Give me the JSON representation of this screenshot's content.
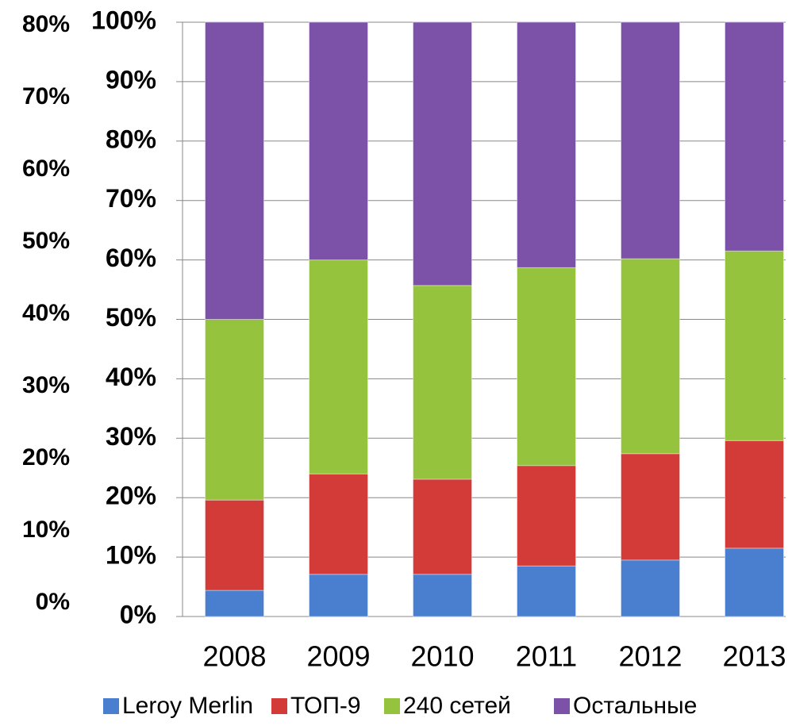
{
  "chart_data": {
    "type": "stacked_bar",
    "categories": [
      "2008",
      "2009",
      "2010",
      "2011",
      "2012",
      "2013"
    ],
    "series": [
      {
        "name": "Leroy Merlin",
        "color": "#4a7fcf",
        "values": [
          4.4,
          7.1,
          7.1,
          8.5,
          9.5,
          11.5
        ]
      },
      {
        "name": "ТОП-9",
        "color": "#d23b38",
        "values": [
          15.2,
          16.9,
          16.0,
          16.9,
          17.9,
          18.1
        ]
      },
      {
        "name": "240 сетей",
        "color": "#96c33e",
        "values": [
          30.4,
          36.0,
          32.6,
          33.3,
          32.8,
          31.9
        ]
      },
      {
        "name": "Остальные",
        "color": "#7b52a8",
        "values": [
          50.0,
          40.0,
          44.3,
          41.3,
          39.8,
          38.5
        ]
      }
    ],
    "ylim": [
      0,
      100
    ],
    "yticks": [
      {
        "value": 0,
        "label": "0%"
      },
      {
        "value": 10,
        "label": "10%"
      },
      {
        "value": 20,
        "label": "20%"
      },
      {
        "value": 30,
        "label": "30%"
      },
      {
        "value": 40,
        "label": "40%"
      },
      {
        "value": 50,
        "label": "50%"
      },
      {
        "value": 60,
        "label": "60%"
      },
      {
        "value": 70,
        "label": "70%"
      },
      {
        "value": 80,
        "label": "80%"
      },
      {
        "value": 90,
        "label": "90%"
      },
      {
        "value": 100,
        "label": "100%"
      }
    ],
    "y2lim": [
      0,
      80
    ],
    "y2ticks": [
      {
        "value": 0,
        "label": "0%"
      },
      {
        "value": 10,
        "label": "10%"
      },
      {
        "value": 20,
        "label": "20%"
      },
      {
        "value": 30,
        "label": "30%"
      },
      {
        "value": 40,
        "label": "40%"
      },
      {
        "value": 50,
        "label": "50%"
      },
      {
        "value": 60,
        "label": "60%"
      },
      {
        "value": 70,
        "label": "70%"
      },
      {
        "value": 80,
        "label": "80%"
      }
    ],
    "grid": true,
    "legend": "bottom"
  }
}
